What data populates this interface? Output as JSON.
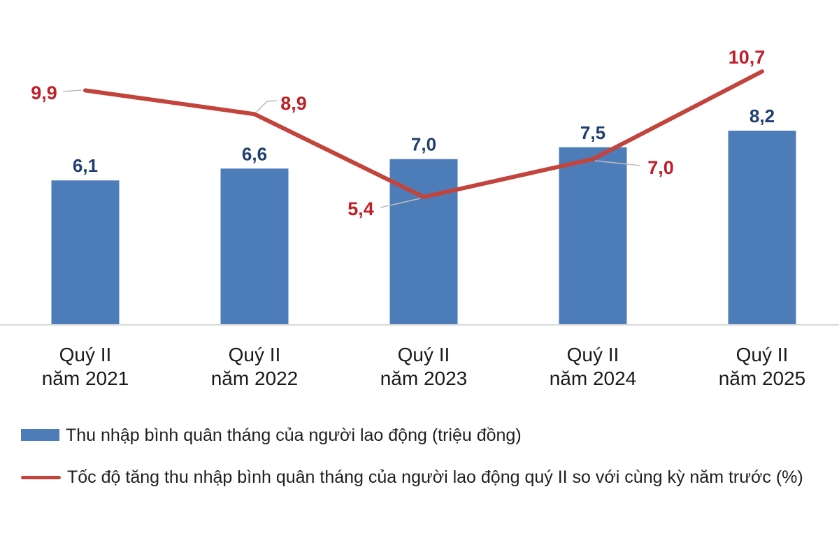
{
  "colors": {
    "background": "#FFFFFF",
    "bar": "#4C7DB8",
    "bar_label": "#1F3E70",
    "line": "#C2443D",
    "line_label": "#C01F28",
    "axis": "#D9D9D9",
    "leader": "#BDBDBD",
    "tick_label": "#1A1A1A",
    "legend_text": "#1F1F1F"
  },
  "chart_data": {
    "type": "bar+line",
    "categories": [
      [
        "Quý II",
        "năm 2021"
      ],
      [
        "Quý II",
        "năm 2022"
      ],
      [
        "Quý II",
        "năm 2023"
      ],
      [
        "Quý II",
        "năm 2024"
      ],
      [
        "Quý II",
        "năm 2025"
      ]
    ],
    "series": [
      {
        "name": "Thu nhập bình quân tháng của người lao động (triệu đồng)",
        "type": "bar",
        "values": [
          6.1,
          6.6,
          7.0,
          7.5,
          8.2
        ],
        "labels": [
          "6,1",
          "6,6",
          "7,0",
          "7,5",
          "8,2"
        ],
        "color": "#4C7DB8"
      },
      {
        "name": "Tốc độ tăng thu nhập bình quân tháng của người lao động quý II so với cùng kỳ năm trước (%)",
        "type": "line",
        "values": [
          9.9,
          8.9,
          5.4,
          7.0,
          10.7
        ],
        "labels": [
          "9,9",
          "8,9",
          "5,4",
          "7,0",
          "10,7"
        ],
        "color": "#C2443D"
      }
    ],
    "ylim": [
      0,
      13.7
    ],
    "grid": false,
    "axis_visible": "x-only",
    "legend_position": "bottom-left"
  },
  "legend": {
    "items": [
      {
        "swatch": "bar-swatch",
        "label": "Thu nhập bình quân tháng của người lao động (triệu đồng)"
      },
      {
        "swatch": "line-swatch",
        "label": "Tốc độ tăng thu nhập bình quân tháng của người lao động quý II so với cùng kỳ năm trước (%)"
      }
    ]
  }
}
